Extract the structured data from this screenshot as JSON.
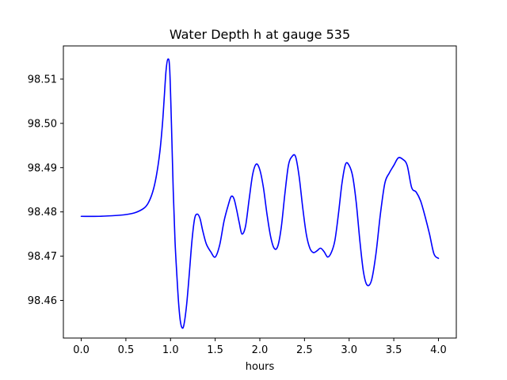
{
  "chart_data": {
    "type": "line",
    "title": "Water Depth h at gauge 535",
    "xlabel": "hours",
    "ylabel": "",
    "xlim": [
      -0.2,
      4.2
    ],
    "ylim": [
      98.4515,
      98.5175
    ],
    "xticks": [
      0.0,
      0.5,
      1.0,
      1.5,
      2.0,
      2.5,
      3.0,
      3.5,
      4.0
    ],
    "xtick_labels": [
      "0.0",
      "0.5",
      "1.0",
      "1.5",
      "2.0",
      "2.5",
      "3.0",
      "3.5",
      "4.0"
    ],
    "yticks": [
      98.46,
      98.47,
      98.48,
      98.49,
      98.5,
      98.51
    ],
    "ytick_labels": [
      "98.46",
      "98.47",
      "98.48",
      "98.49",
      "98.50",
      "98.51"
    ],
    "grid": false,
    "series": [
      {
        "color": "#0000ff",
        "x": [
          0.0,
          0.2,
          0.4,
          0.5,
          0.6,
          0.7,
          0.75,
          0.8,
          0.84,
          0.88,
          0.91,
          0.93,
          0.95,
          0.97,
          0.99,
          1.01,
          1.03,
          1.05,
          1.07,
          1.09,
          1.11,
          1.13,
          1.15,
          1.18,
          1.21,
          1.24,
          1.27,
          1.3,
          1.33,
          1.36,
          1.4,
          1.45,
          1.5,
          1.55,
          1.6,
          1.65,
          1.68,
          1.71,
          1.74,
          1.77,
          1.8,
          1.84,
          1.88,
          1.92,
          1.96,
          2.0,
          2.04,
          2.08,
          2.12,
          2.16,
          2.2,
          2.24,
          2.28,
          2.32,
          2.36,
          2.4,
          2.44,
          2.48,
          2.52,
          2.56,
          2.6,
          2.64,
          2.68,
          2.72,
          2.76,
          2.8,
          2.84,
          2.88,
          2.92,
          2.96,
          3.0,
          3.04,
          3.08,
          3.12,
          3.16,
          3.2,
          3.25,
          3.3,
          3.35,
          3.4,
          3.45,
          3.5,
          3.55,
          3.6,
          3.65,
          3.7,
          3.75,
          3.8,
          3.85,
          3.9,
          3.95,
          4.0
        ],
        "y": [
          98.479,
          98.479,
          98.4792,
          98.4794,
          98.4798,
          98.4808,
          98.482,
          98.4845,
          98.488,
          98.4935,
          98.5,
          98.506,
          98.512,
          98.5145,
          98.5125,
          98.5,
          98.485,
          98.4735,
          98.466,
          98.4595,
          98.4553,
          98.4538,
          98.4545,
          98.459,
          98.466,
          98.4735,
          98.4785,
          98.4795,
          98.4785,
          98.4758,
          98.4728,
          98.471,
          98.4698,
          98.4725,
          98.478,
          98.4818,
          98.4835,
          98.483,
          98.4805,
          98.4775,
          98.475,
          98.4768,
          98.4828,
          98.4885,
          98.4908,
          98.4895,
          98.4855,
          98.4795,
          98.4745,
          98.4718,
          98.4722,
          98.4765,
          98.484,
          98.4905,
          98.4925,
          98.4925,
          98.488,
          98.481,
          98.475,
          98.4718,
          98.4708,
          98.4712,
          98.4718,
          98.471,
          98.4698,
          98.4708,
          98.4735,
          98.4795,
          98.4865,
          98.4908,
          98.4905,
          98.488,
          98.482,
          98.4735,
          98.4665,
          98.4635,
          98.4645,
          98.4705,
          98.4795,
          98.4865,
          98.4888,
          98.4905,
          98.4922,
          98.4919,
          98.4905,
          98.4855,
          98.4845,
          98.4825,
          98.479,
          98.475,
          98.4705,
          98.4695
        ]
      }
    ]
  }
}
